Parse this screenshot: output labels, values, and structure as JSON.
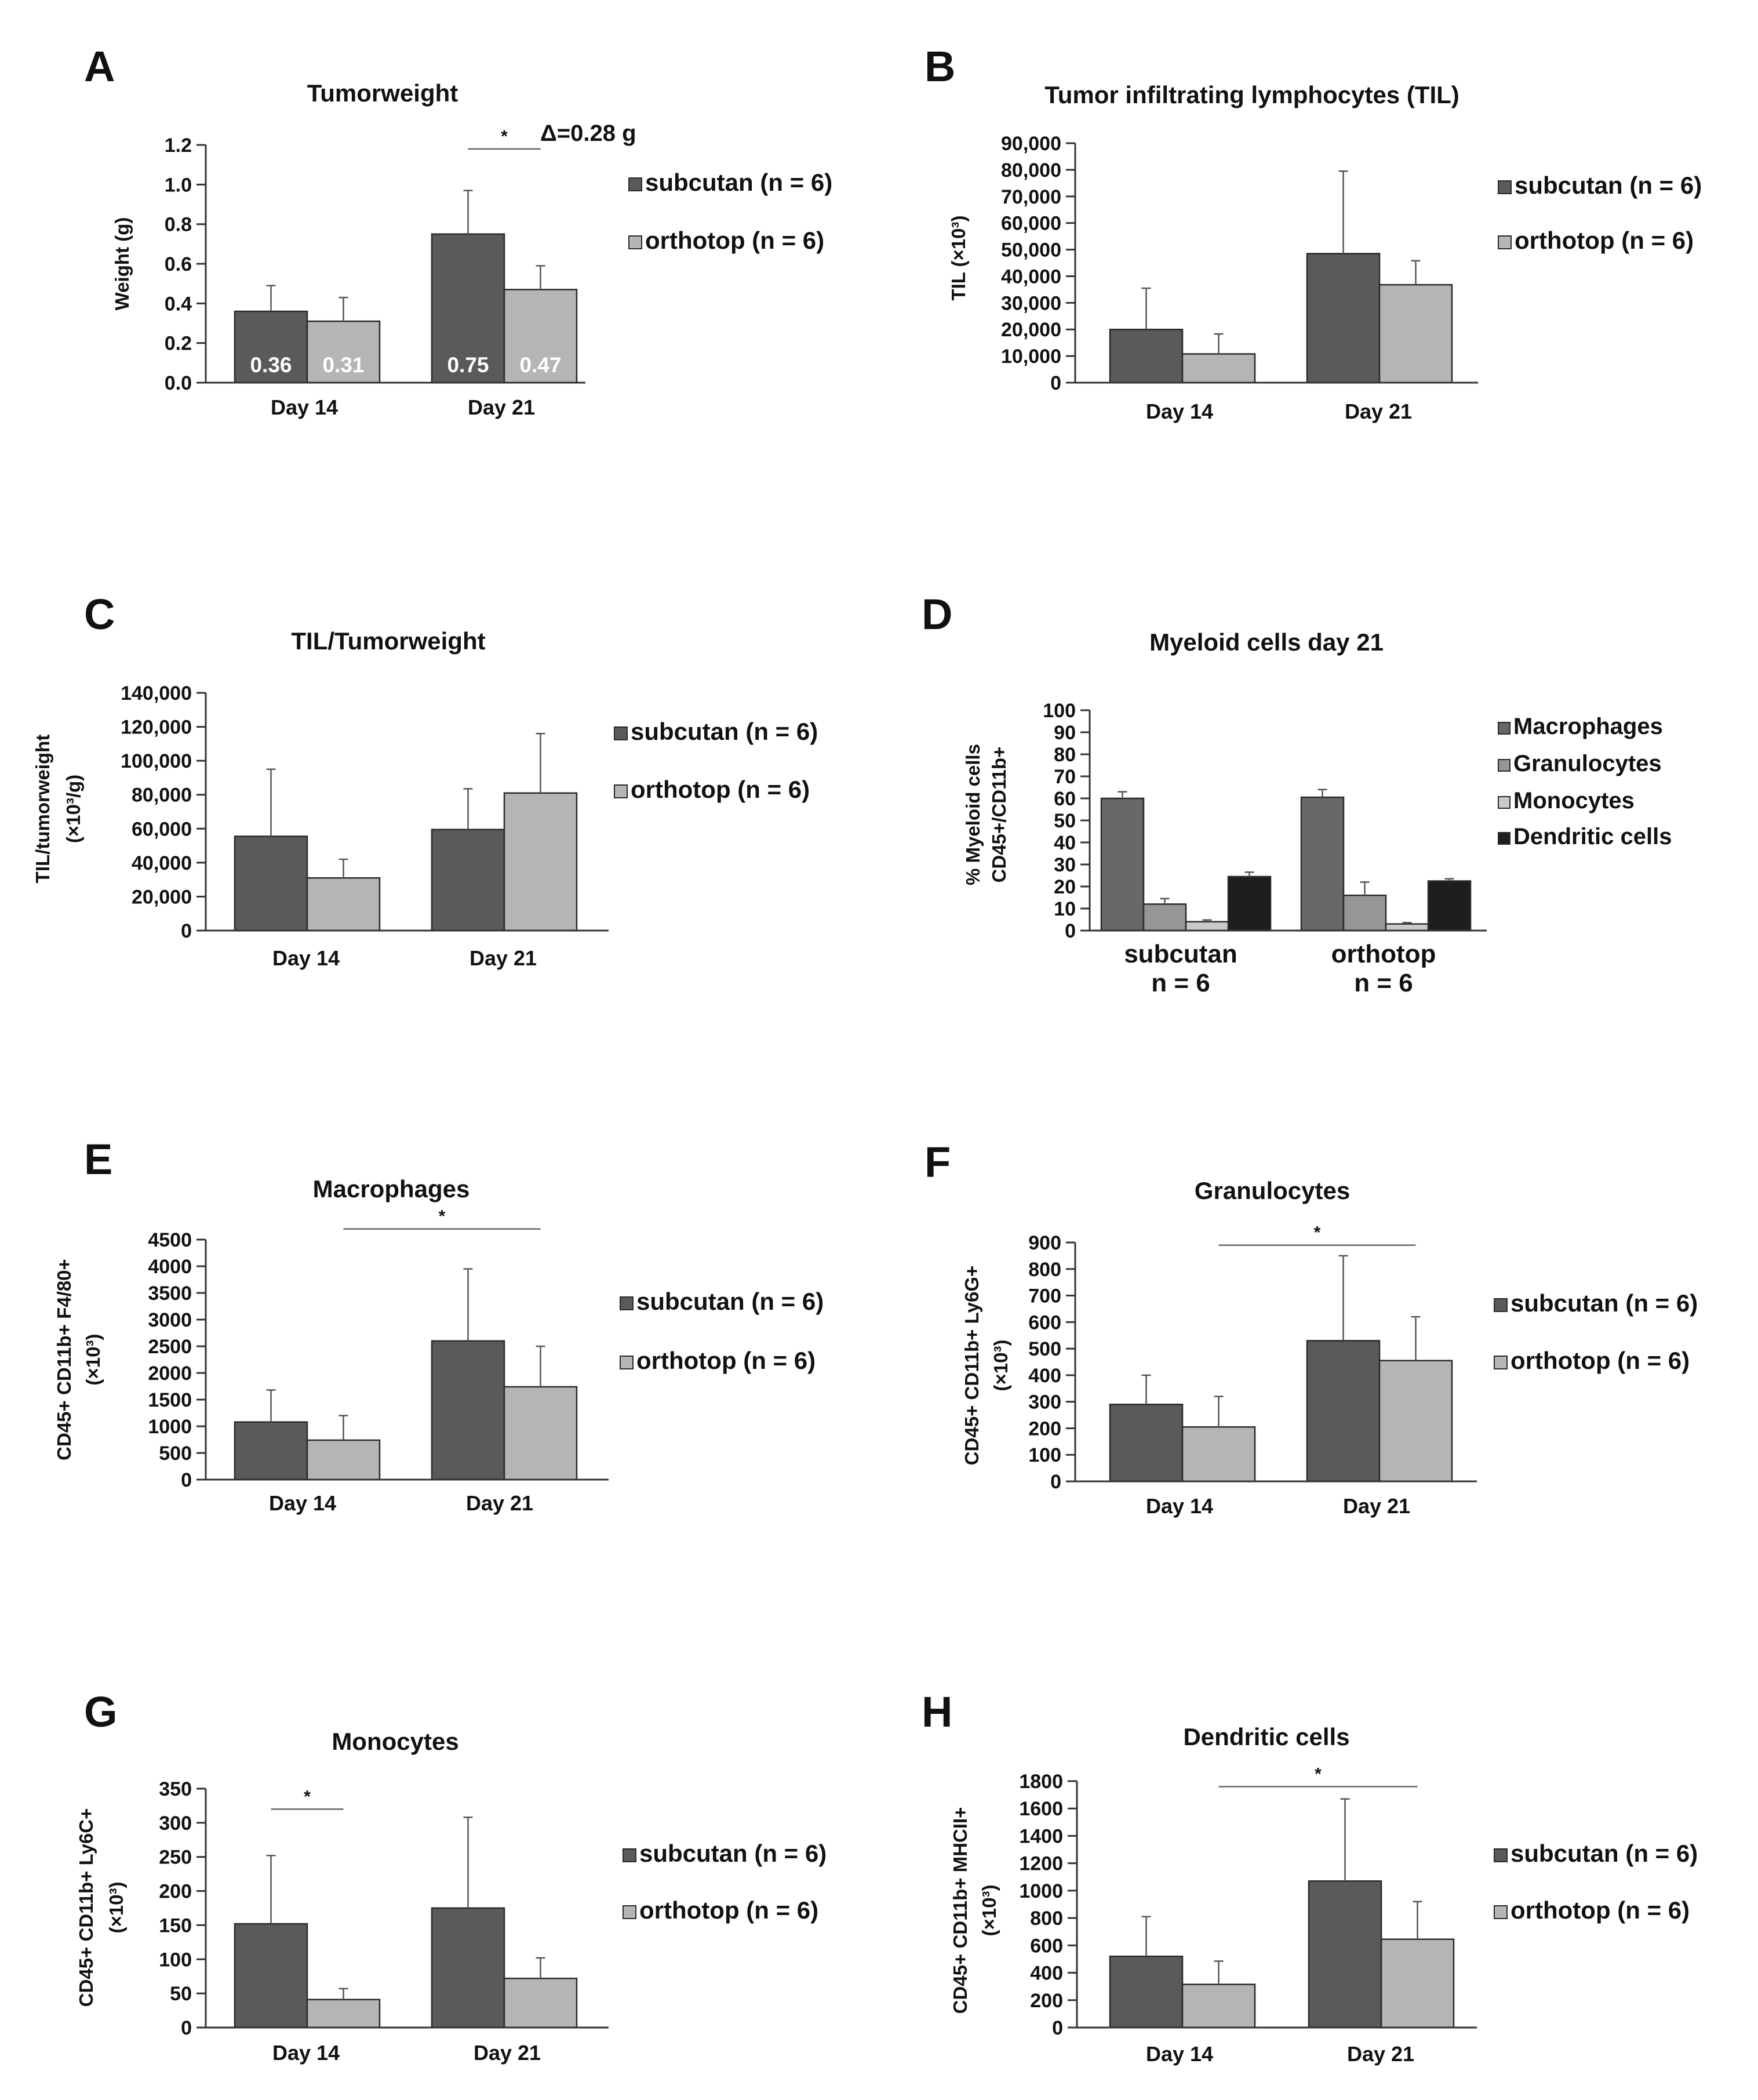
{
  "colors": {
    "subcutan": "#5a5a5a",
    "orthotop": "#b5b5b5",
    "macrophages": "#686868",
    "granulocytes": "#969696",
    "monocytes": "#c9c9c9",
    "dendritic": "#1e1e1e",
    "axis": "#333333"
  },
  "chart_data": [
    {
      "id": "A",
      "panel_label": "A",
      "type": "bar",
      "title": "Tumorweight",
      "ylabel": "Weight (g)",
      "ylim": [
        0,
        1.2
      ],
      "yticks": [
        "0.0",
        "0.2",
        "0.4",
        "0.6",
        "0.8",
        "1.0",
        "1.2"
      ],
      "categories": [
        "Day 14",
        "Day 21"
      ],
      "series": [
        {
          "name": "subcutan (n = 6)",
          "color_key": "subcutan",
          "values": [
            0.36,
            0.75
          ],
          "errors": [
            0.13,
            0.22
          ],
          "labels": [
            "0.36",
            "0.75"
          ]
        },
        {
          "name": "orthotop (n = 6)",
          "color_key": "orthotop",
          "values": [
            0.31,
            0.47
          ],
          "errors": [
            0.12,
            0.12
          ],
          "labels": [
            "0.31",
            "0.47"
          ]
        }
      ],
      "significance": [
        {
          "from": [
            1,
            0
          ],
          "to": [
            1,
            1
          ],
          "y": 1.18,
          "label": "*"
        }
      ],
      "annotation": "Δ=0.28 g",
      "legend": "right"
    },
    {
      "id": "B",
      "panel_label": "B",
      "type": "bar",
      "title": "Tumor infiltrating lymphocytes (TIL)",
      "ylabel": "TIL (×10³)",
      "ylim": [
        0,
        90000
      ],
      "yticks": [
        "0",
        "10,000",
        "20,000",
        "30,000",
        "40,000",
        "50,000",
        "60,000",
        "70,000",
        "80,000",
        "90,000"
      ],
      "categories": [
        "Day 14",
        "Day 21"
      ],
      "series": [
        {
          "name": "subcutan (n = 6)",
          "color_key": "subcutan",
          "values": [
            20000,
            48500
          ],
          "errors": [
            15500,
            31000
          ]
        },
        {
          "name": "orthotop (n = 6)",
          "color_key": "orthotop",
          "values": [
            10800,
            36800
          ],
          "errors": [
            7500,
            9000
          ]
        }
      ],
      "significance": [],
      "legend": "right"
    },
    {
      "id": "C",
      "panel_label": "C",
      "type": "bar",
      "title": "TIL/Tumorweight",
      "ylabel": [
        "TIL/tumorweight",
        "(×10³/g)"
      ],
      "ylim": [
        0,
        140000
      ],
      "yticks": [
        "0",
        "20,000",
        "40,000",
        "60,000",
        "80,000",
        "100,000",
        "120,000",
        "140,000"
      ],
      "categories": [
        "Day 14",
        "Day 21"
      ],
      "series": [
        {
          "name": "subcutan (n = 6)",
          "color_key": "subcutan",
          "values": [
            55500,
            59500
          ],
          "errors": [
            39500,
            24000
          ]
        },
        {
          "name": "orthotop (n = 6)",
          "color_key": "orthotop",
          "values": [
            31000,
            81000
          ],
          "errors": [
            11000,
            35000
          ]
        }
      ],
      "significance": [],
      "legend": "right"
    },
    {
      "id": "D",
      "panel_label": "D",
      "type": "bar",
      "title": "Myeloid cells day 21",
      "ylabel": [
        "% Myeloid cells",
        "CD45+/CD11b+"
      ],
      "ylim": [
        0,
        100
      ],
      "yticks": [
        "0",
        "10",
        "20",
        "30",
        "40",
        "50",
        "60",
        "70",
        "80",
        "90",
        "100"
      ],
      "categories": [
        "subcutan",
        "orthotop"
      ],
      "categories_sub": [
        "n = 6",
        "n = 6"
      ],
      "series": [
        {
          "name": "Macrophages",
          "color_key": "macrophages",
          "values": [
            60,
            60.5
          ],
          "errors": [
            3,
            3.5
          ]
        },
        {
          "name": "Granulocytes",
          "color_key": "granulocytes",
          "values": [
            12,
            16
          ],
          "errors": [
            2.5,
            6
          ]
        },
        {
          "name": "Monocytes",
          "color_key": "monocytes",
          "values": [
            4,
            3
          ],
          "errors": [
            0.8,
            0.6
          ]
        },
        {
          "name": "Dendritic cells",
          "color_key": "dendritic",
          "values": [
            24.5,
            22.5
          ],
          "errors": [
            2,
            1
          ]
        }
      ],
      "significance": [],
      "legend": "right"
    },
    {
      "id": "E",
      "panel_label": "E",
      "type": "bar",
      "title": "Macrophages",
      "ylabel": [
        "CD45+ CD11b+ F4/80+",
        "(×10³)"
      ],
      "ylim": [
        0,
        4500
      ],
      "yticks": [
        "0",
        "500",
        "1000",
        "1500",
        "2000",
        "2500",
        "3000",
        "3500",
        "4000",
        "4500"
      ],
      "categories": [
        "Day 14",
        "Day 21"
      ],
      "series": [
        {
          "name": "subcutan (n = 6)",
          "color_key": "subcutan",
          "values": [
            1080,
            2600
          ],
          "errors": [
            600,
            1350
          ]
        },
        {
          "name": "orthotop (n = 6)",
          "color_key": "orthotop",
          "values": [
            740,
            1740
          ],
          "errors": [
            460,
            760
          ]
        }
      ],
      "significance": [
        {
          "from": [
            0,
            1
          ],
          "to": [
            1,
            1
          ],
          "y": 4700,
          "label": "*"
        }
      ],
      "legend": "right"
    },
    {
      "id": "F",
      "panel_label": "F",
      "type": "bar",
      "title": "Granulocytes",
      "ylabel": [
        "CD45+ CD11b+ Ly6G+",
        "(×10³)"
      ],
      "ylim": [
        0,
        900
      ],
      "yticks": [
        "0",
        "100",
        "200",
        "300",
        "400",
        "500",
        "600",
        "700",
        "800",
        "900"
      ],
      "categories": [
        "Day 14",
        "Day 21"
      ],
      "series": [
        {
          "name": "subcutan (n = 6)",
          "color_key": "subcutan",
          "values": [
            290,
            530
          ],
          "errors": [
            110,
            320
          ]
        },
        {
          "name": "orthotop (n = 6)",
          "color_key": "orthotop",
          "values": [
            205,
            455
          ],
          "errors": [
            115,
            165
          ]
        }
      ],
      "significance": [
        {
          "from": [
            0,
            1
          ],
          "to": [
            1,
            1
          ],
          "y": 890,
          "label": "*"
        }
      ],
      "legend": "right"
    },
    {
      "id": "G",
      "panel_label": "G",
      "type": "bar",
      "title": "Monocytes",
      "ylabel": [
        "CD45+ CD11b+ Ly6C+",
        "(×10³)"
      ],
      "ylim": [
        0,
        350
      ],
      "yticks": [
        "0",
        "50",
        "100",
        "150",
        "200",
        "250",
        "300",
        "350"
      ],
      "categories": [
        "Day 14",
        "Day 21"
      ],
      "series": [
        {
          "name": "subcutan (n = 6)",
          "color_key": "subcutan",
          "values": [
            152,
            175
          ],
          "errors": [
            100,
            133
          ]
        },
        {
          "name": "orthotop (n = 6)",
          "color_key": "orthotop",
          "values": [
            41,
            72
          ],
          "errors": [
            16,
            30
          ]
        }
      ],
      "significance": [
        {
          "from": [
            0,
            0
          ],
          "to": [
            0,
            1
          ],
          "y": 320,
          "label": "*"
        }
      ],
      "legend": "right"
    },
    {
      "id": "H",
      "panel_label": "H",
      "type": "bar",
      "title": "Dendritic cells",
      "ylabel": [
        "CD45+ CD11b+ MHCII+",
        "(×10³)"
      ],
      "ylim": [
        0,
        1800
      ],
      "yticks": [
        "0",
        "200",
        "400",
        "600",
        "800",
        "1000",
        "1200",
        "1400",
        "1600",
        "1800"
      ],
      "categories": [
        "Day 14",
        "Day 21"
      ],
      "series": [
        {
          "name": "subcutan (n = 6)",
          "color_key": "subcutan",
          "values": [
            520,
            1070
          ],
          "errors": [
            290,
            600
          ]
        },
        {
          "name": "orthotop (n = 6)",
          "color_key": "orthotop",
          "values": [
            315,
            645
          ],
          "errors": [
            170,
            275
          ]
        }
      ],
      "significance": [
        {
          "from": [
            0,
            1
          ],
          "to": [
            1,
            1
          ],
          "y": 1760,
          "label": "*"
        }
      ],
      "legend": "right"
    }
  ]
}
